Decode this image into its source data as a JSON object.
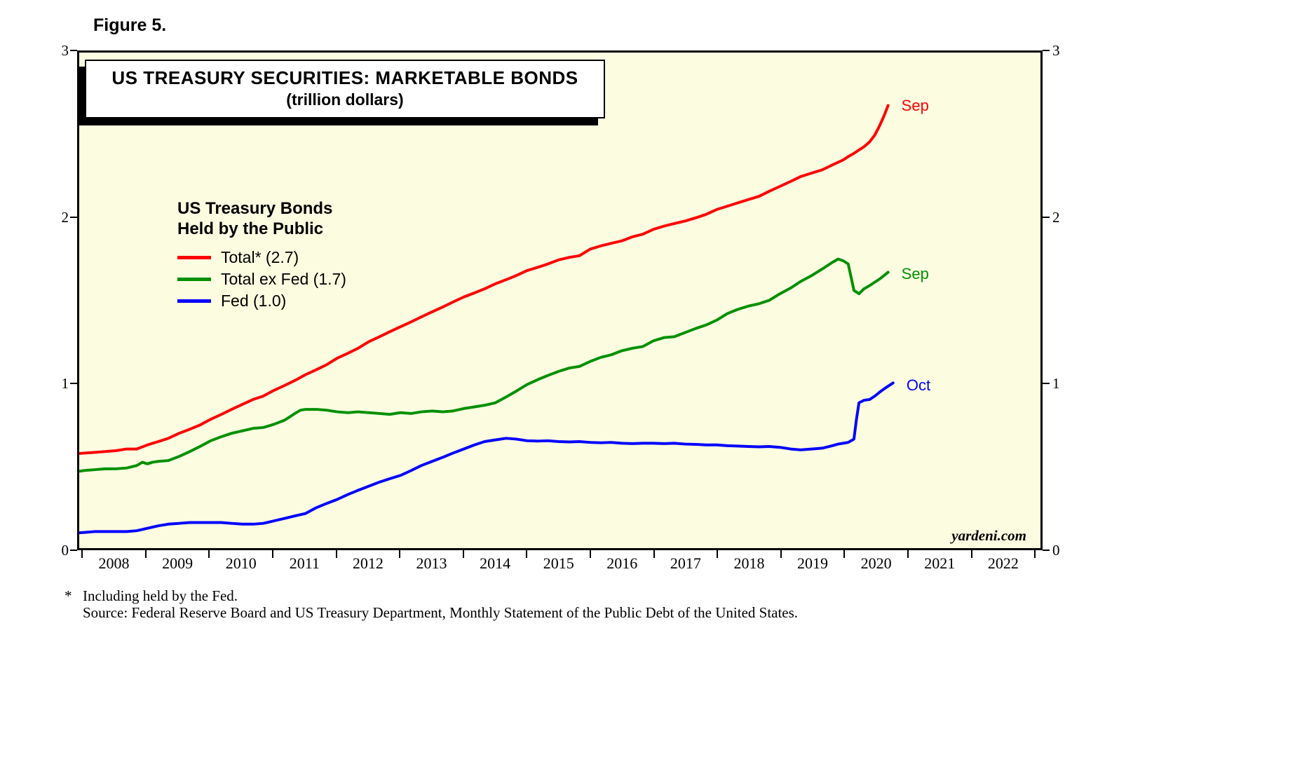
{
  "figure_label": "Figure 5.",
  "title": "US TREASURY SECURITIES: MARKETABLE BONDS",
  "subtitle": "(trillion dollars)",
  "watermark": "yardeni.com",
  "legend": {
    "header_line1": "US Treasury Bonds",
    "header_line2": "Held by the Public"
  },
  "footnotes": {
    "marker": "*",
    "line1": "Including held by the Fed.",
    "line2": "Source: Federal Reserve Board and US Treasury Department, Monthly Statement of the Public Debt of the United States."
  },
  "colors": {
    "plot_background": "#FCFCE0",
    "axis": "#000000",
    "total": "#FF0000",
    "total_ex_fed": "#009000",
    "fed": "#0000FF"
  },
  "chart_data": {
    "type": "line",
    "title": "US TREASURY SECURITIES: MARKETABLE BONDS",
    "subtitle": "(trillion dollars)",
    "xlabel": "",
    "ylabel": "trillion dollars",
    "grid": false,
    "legend_position": "inside-upper-left",
    "x_domain": [
      2007.92,
      2023.12
    ],
    "y_domain": [
      0,
      3
    ],
    "y_ticks": [
      0,
      1,
      2,
      3
    ],
    "x_tick_labels": [
      "2008",
      "2009",
      "2010",
      "2011",
      "2012",
      "2013",
      "2014",
      "2015",
      "2016",
      "2017",
      "2018",
      "2019",
      "2020",
      "2021",
      "2022"
    ],
    "x_boundary_ticks": [
      2008,
      2009,
      2010,
      2011,
      2012,
      2013,
      2014,
      2015,
      2016,
      2017,
      2018,
      2019,
      2020,
      2021,
      2022,
      2023
    ],
    "series": [
      {
        "id": "total",
        "label": "Total* (2.7)",
        "color": "#FF0000",
        "end_label": "Sep",
        "end_value": 2.7,
        "points": [
          [
            2007.83,
            0.57
          ],
          [
            2008.0,
            0.575
          ],
          [
            2008.17,
            0.58
          ],
          [
            2008.33,
            0.585
          ],
          [
            2008.5,
            0.59
          ],
          [
            2008.67,
            0.6
          ],
          [
            2008.83,
            0.6
          ],
          [
            2009.0,
            0.625
          ],
          [
            2009.17,
            0.645
          ],
          [
            2009.33,
            0.665
          ],
          [
            2009.5,
            0.695
          ],
          [
            2009.67,
            0.72
          ],
          [
            2009.83,
            0.745
          ],
          [
            2010.0,
            0.78
          ],
          [
            2010.17,
            0.81
          ],
          [
            2010.33,
            0.84
          ],
          [
            2010.5,
            0.87
          ],
          [
            2010.67,
            0.9
          ],
          [
            2010.83,
            0.92
          ],
          [
            2011.0,
            0.955
          ],
          [
            2011.17,
            0.985
          ],
          [
            2011.33,
            1.015
          ],
          [
            2011.5,
            1.05
          ],
          [
            2011.67,
            1.08
          ],
          [
            2011.83,
            1.11
          ],
          [
            2012.0,
            1.15
          ],
          [
            2012.17,
            1.18
          ],
          [
            2012.33,
            1.21
          ],
          [
            2012.5,
            1.25
          ],
          [
            2012.67,
            1.28
          ],
          [
            2012.83,
            1.31
          ],
          [
            2013.0,
            1.34
          ],
          [
            2013.17,
            1.37
          ],
          [
            2013.33,
            1.4
          ],
          [
            2013.5,
            1.43
          ],
          [
            2013.67,
            1.46
          ],
          [
            2013.83,
            1.49
          ],
          [
            2014.0,
            1.52
          ],
          [
            2014.17,
            1.545
          ],
          [
            2014.33,
            1.57
          ],
          [
            2014.5,
            1.6
          ],
          [
            2014.67,
            1.625
          ],
          [
            2014.83,
            1.65
          ],
          [
            2015.0,
            1.68
          ],
          [
            2015.17,
            1.7
          ],
          [
            2015.33,
            1.72
          ],
          [
            2015.5,
            1.745
          ],
          [
            2015.67,
            1.76
          ],
          [
            2015.83,
            1.77
          ],
          [
            2016.0,
            1.81
          ],
          [
            2016.17,
            1.83
          ],
          [
            2016.33,
            1.845
          ],
          [
            2016.5,
            1.86
          ],
          [
            2016.67,
            1.885
          ],
          [
            2016.83,
            1.9
          ],
          [
            2017.0,
            1.93
          ],
          [
            2017.17,
            1.95
          ],
          [
            2017.33,
            1.965
          ],
          [
            2017.5,
            1.98
          ],
          [
            2017.67,
            2.0
          ],
          [
            2017.83,
            2.02
          ],
          [
            2018.0,
            2.05
          ],
          [
            2018.17,
            2.07
          ],
          [
            2018.33,
            2.09
          ],
          [
            2018.5,
            2.11
          ],
          [
            2018.67,
            2.13
          ],
          [
            2018.83,
            2.16
          ],
          [
            2019.0,
            2.19
          ],
          [
            2019.17,
            2.22
          ],
          [
            2019.33,
            2.25
          ],
          [
            2019.5,
            2.27
          ],
          [
            2019.67,
            2.29
          ],
          [
            2019.83,
            2.32
          ],
          [
            2020.0,
            2.35
          ],
          [
            2020.08,
            2.37
          ],
          [
            2020.17,
            2.39
          ],
          [
            2020.25,
            2.41
          ],
          [
            2020.33,
            2.43
          ],
          [
            2020.42,
            2.46
          ],
          [
            2020.5,
            2.5
          ],
          [
            2020.58,
            2.56
          ],
          [
            2020.65,
            2.62
          ],
          [
            2020.71,
            2.68
          ]
        ]
      },
      {
        "id": "total-ex-fed",
        "label": "Total ex Fed (1.7)",
        "color": "#009000",
        "end_label": "Sep",
        "end_value": 1.7,
        "points": [
          [
            2007.83,
            0.46
          ],
          [
            2008.0,
            0.47
          ],
          [
            2008.17,
            0.475
          ],
          [
            2008.33,
            0.48
          ],
          [
            2008.5,
            0.48
          ],
          [
            2008.67,
            0.485
          ],
          [
            2008.83,
            0.5
          ],
          [
            2008.92,
            0.52
          ],
          [
            2009.0,
            0.51
          ],
          [
            2009.08,
            0.52
          ],
          [
            2009.17,
            0.525
          ],
          [
            2009.33,
            0.53
          ],
          [
            2009.5,
            0.555
          ],
          [
            2009.67,
            0.585
          ],
          [
            2009.83,
            0.615
          ],
          [
            2010.0,
            0.65
          ],
          [
            2010.17,
            0.675
          ],
          [
            2010.33,
            0.695
          ],
          [
            2010.5,
            0.71
          ],
          [
            2010.67,
            0.725
          ],
          [
            2010.83,
            0.73
          ],
          [
            2011.0,
            0.75
          ],
          [
            2011.17,
            0.775
          ],
          [
            2011.33,
            0.815
          ],
          [
            2011.42,
            0.835
          ],
          [
            2011.5,
            0.84
          ],
          [
            2011.67,
            0.84
          ],
          [
            2011.83,
            0.835
          ],
          [
            2012.0,
            0.825
          ],
          [
            2012.17,
            0.82
          ],
          [
            2012.33,
            0.825
          ],
          [
            2012.5,
            0.82
          ],
          [
            2012.67,
            0.815
          ],
          [
            2012.83,
            0.81
          ],
          [
            2013.0,
            0.82
          ],
          [
            2013.17,
            0.815
          ],
          [
            2013.33,
            0.825
          ],
          [
            2013.5,
            0.83
          ],
          [
            2013.67,
            0.825
          ],
          [
            2013.83,
            0.83
          ],
          [
            2014.0,
            0.845
          ],
          [
            2014.17,
            0.855
          ],
          [
            2014.33,
            0.865
          ],
          [
            2014.5,
            0.88
          ],
          [
            2014.67,
            0.915
          ],
          [
            2014.83,
            0.95
          ],
          [
            2015.0,
            0.99
          ],
          [
            2015.17,
            1.02
          ],
          [
            2015.33,
            1.045
          ],
          [
            2015.5,
            1.07
          ],
          [
            2015.67,
            1.09
          ],
          [
            2015.83,
            1.1
          ],
          [
            2016.0,
            1.13
          ],
          [
            2016.17,
            1.155
          ],
          [
            2016.33,
            1.17
          ],
          [
            2016.5,
            1.195
          ],
          [
            2016.67,
            1.21
          ],
          [
            2016.83,
            1.22
          ],
          [
            2017.0,
            1.255
          ],
          [
            2017.17,
            1.275
          ],
          [
            2017.33,
            1.28
          ],
          [
            2017.5,
            1.305
          ],
          [
            2017.67,
            1.33
          ],
          [
            2017.83,
            1.35
          ],
          [
            2018.0,
            1.38
          ],
          [
            2018.17,
            1.42
          ],
          [
            2018.33,
            1.445
          ],
          [
            2018.5,
            1.465
          ],
          [
            2018.67,
            1.48
          ],
          [
            2018.83,
            1.5
          ],
          [
            2019.0,
            1.54
          ],
          [
            2019.17,
            1.575
          ],
          [
            2019.33,
            1.615
          ],
          [
            2019.5,
            1.65
          ],
          [
            2019.67,
            1.69
          ],
          [
            2019.83,
            1.73
          ],
          [
            2019.92,
            1.75
          ],
          [
            2020.0,
            1.74
          ],
          [
            2020.08,
            1.72
          ],
          [
            2020.17,
            1.56
          ],
          [
            2020.25,
            1.54
          ],
          [
            2020.33,
            1.57
          ],
          [
            2020.42,
            1.59
          ],
          [
            2020.5,
            1.61
          ],
          [
            2020.58,
            1.63
          ],
          [
            2020.71,
            1.67
          ]
        ]
      },
      {
        "id": "fed",
        "label": "Fed (1.0)",
        "color": "#0000FF",
        "end_label": "Oct",
        "end_value": 1.0,
        "points": [
          [
            2007.83,
            0.09
          ],
          [
            2008.0,
            0.095
          ],
          [
            2008.17,
            0.1
          ],
          [
            2008.33,
            0.1
          ],
          [
            2008.5,
            0.1
          ],
          [
            2008.67,
            0.1
          ],
          [
            2008.83,
            0.105
          ],
          [
            2009.0,
            0.12
          ],
          [
            2009.17,
            0.135
          ],
          [
            2009.33,
            0.145
          ],
          [
            2009.5,
            0.15
          ],
          [
            2009.67,
            0.155
          ],
          [
            2009.83,
            0.155
          ],
          [
            2010.0,
            0.155
          ],
          [
            2010.17,
            0.155
          ],
          [
            2010.33,
            0.15
          ],
          [
            2010.5,
            0.145
          ],
          [
            2010.67,
            0.145
          ],
          [
            2010.83,
            0.15
          ],
          [
            2011.0,
            0.165
          ],
          [
            2011.17,
            0.18
          ],
          [
            2011.33,
            0.195
          ],
          [
            2011.5,
            0.21
          ],
          [
            2011.67,
            0.245
          ],
          [
            2011.83,
            0.27
          ],
          [
            2012.0,
            0.295
          ],
          [
            2012.17,
            0.325
          ],
          [
            2012.33,
            0.35
          ],
          [
            2012.5,
            0.375
          ],
          [
            2012.67,
            0.4
          ],
          [
            2012.83,
            0.42
          ],
          [
            2013.0,
            0.44
          ],
          [
            2013.17,
            0.47
          ],
          [
            2013.33,
            0.5
          ],
          [
            2013.5,
            0.525
          ],
          [
            2013.67,
            0.55
          ],
          [
            2013.83,
            0.575
          ],
          [
            2014.0,
            0.6
          ],
          [
            2014.17,
            0.625
          ],
          [
            2014.33,
            0.645
          ],
          [
            2014.5,
            0.655
          ],
          [
            2014.67,
            0.665
          ],
          [
            2014.83,
            0.66
          ],
          [
            2015.0,
            0.65
          ],
          [
            2015.17,
            0.648
          ],
          [
            2015.33,
            0.65
          ],
          [
            2015.5,
            0.645
          ],
          [
            2015.67,
            0.643
          ],
          [
            2015.83,
            0.645
          ],
          [
            2016.0,
            0.64
          ],
          [
            2016.17,
            0.638
          ],
          [
            2016.33,
            0.64
          ],
          [
            2016.5,
            0.635
          ],
          [
            2016.67,
            0.633
          ],
          [
            2016.83,
            0.635
          ],
          [
            2017.0,
            0.635
          ],
          [
            2017.17,
            0.633
          ],
          [
            2017.33,
            0.635
          ],
          [
            2017.5,
            0.63
          ],
          [
            2017.67,
            0.628
          ],
          [
            2017.83,
            0.625
          ],
          [
            2018.0,
            0.625
          ],
          [
            2018.17,
            0.62
          ],
          [
            2018.33,
            0.618
          ],
          [
            2018.5,
            0.615
          ],
          [
            2018.67,
            0.613
          ],
          [
            2018.83,
            0.615
          ],
          [
            2019.0,
            0.61
          ],
          [
            2019.17,
            0.6
          ],
          [
            2019.33,
            0.595
          ],
          [
            2019.5,
            0.6
          ],
          [
            2019.67,
            0.605
          ],
          [
            2019.83,
            0.62
          ],
          [
            2019.92,
            0.63
          ],
          [
            2020.0,
            0.635
          ],
          [
            2020.08,
            0.64
          ],
          [
            2020.17,
            0.66
          ],
          [
            2020.21,
            0.78
          ],
          [
            2020.25,
            0.88
          ],
          [
            2020.33,
            0.895
          ],
          [
            2020.42,
            0.9
          ],
          [
            2020.5,
            0.92
          ],
          [
            2020.58,
            0.945
          ],
          [
            2020.67,
            0.97
          ],
          [
            2020.79,
            1.0
          ]
        ]
      }
    ]
  }
}
